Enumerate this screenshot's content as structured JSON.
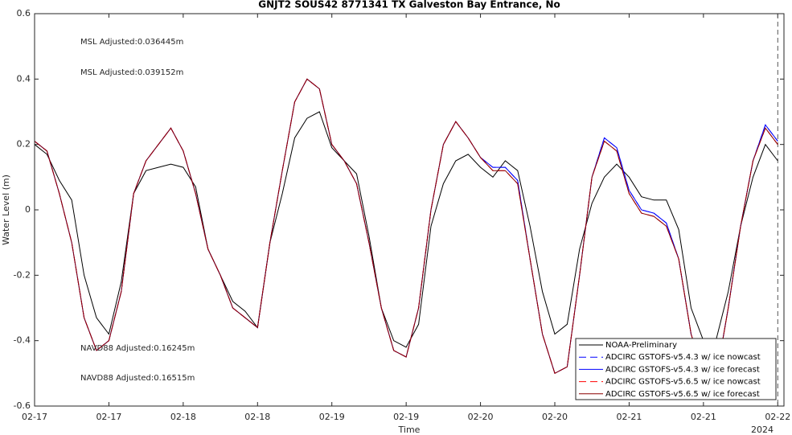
{
  "chart_data": {
    "type": "line",
    "title": "GNJT2 SOUS42 8771341 TX Galveston Bay Entrance, No",
    "xlabel": "Time",
    "ylabel": "Water Level (m)",
    "x_secondary_label": "2024",
    "x": [
      0,
      2,
      4,
      6,
      8,
      10,
      12,
      14,
      16,
      18,
      20,
      22,
      24,
      26,
      28,
      30,
      32,
      34,
      36,
      38,
      40,
      42,
      44,
      46,
      48,
      50,
      52,
      54,
      56,
      58,
      60,
      62,
      64,
      66,
      68,
      70,
      72,
      74,
      76,
      78,
      80,
      82,
      84,
      86,
      88,
      90,
      92,
      94,
      96,
      98,
      100,
      102,
      104,
      106,
      108,
      110,
      112,
      114,
      116,
      118,
      120
    ],
    "xlim": [
      0,
      121
    ],
    "xticks": [
      {
        "value": 0,
        "label": "02-17"
      },
      {
        "value": 12,
        "label": "02-17"
      },
      {
        "value": 24,
        "label": "02-18"
      },
      {
        "value": 36,
        "label": "02-18"
      },
      {
        "value": 48,
        "label": "02-19"
      },
      {
        "value": 60,
        "label": "02-19"
      },
      {
        "value": 72,
        "label": "02-20"
      },
      {
        "value": 84,
        "label": "02-20"
      },
      {
        "value": 96,
        "label": "02-21"
      },
      {
        "value": 108,
        "label": "02-21"
      },
      {
        "value": 120,
        "label": "02-22"
      }
    ],
    "ylim": [
      -0.6,
      0.6
    ],
    "yticks": [
      -0.6,
      -0.4,
      -0.2,
      0,
      0.2,
      0.4,
      0.6
    ],
    "vline_x": 120,
    "legend": "lower right",
    "series": [
      {
        "name": "NOAA-Preliminary",
        "color": "#000000",
        "dash": "solid",
        "values": [
          0.2,
          0.17,
          0.09,
          0.03,
          -0.2,
          -0.33,
          -0.38,
          -0.22,
          0.05,
          0.12,
          0.13,
          0.14,
          0.13,
          0.07,
          -0.12,
          -0.2,
          -0.28,
          -0.31,
          -0.36,
          -0.1,
          0.05,
          0.22,
          0.28,
          0.3,
          0.19,
          0.15,
          0.11,
          -0.08,
          -0.3,
          -0.4,
          -0.42,
          -0.35,
          -0.05,
          0.08,
          0.15,
          0.17,
          0.13,
          0.1,
          0.15,
          0.12,
          -0.05,
          -0.25,
          -0.38,
          -0.35,
          -0.12,
          0.02,
          0.1,
          0.14,
          0.1,
          0.04,
          0.03,
          0.03,
          -0.06,
          -0.3,
          -0.4,
          -0.4,
          -0.25,
          -0.05,
          0.1,
          0.2,
          0.15
        ]
      },
      {
        "name": "ADCIRC GSTOFS-v5.4.3 w/ ice nowcast",
        "color": "#0000ff",
        "dash": "dashed",
        "values": [
          0.21,
          0.18,
          0.05,
          -0.1,
          -0.33,
          -0.43,
          -0.4,
          -0.25,
          0.05,
          0.15,
          0.2,
          0.25,
          0.18,
          0.05,
          -0.12,
          -0.2,
          -0.3,
          -0.33,
          -0.36,
          -0.1,
          0.12,
          0.33,
          0.4,
          0.37,
          0.2,
          0.15,
          0.08,
          -0.1,
          -0.3,
          -0.43,
          -0.45,
          -0.3,
          0.0,
          0.2,
          0.27,
          0.22,
          0.16,
          0.13,
          0.13,
          0.09,
          -0.15,
          -0.38,
          -0.5,
          -0.48,
          -0.2,
          0.1,
          0.22,
          0.19,
          0.06,
          0.0,
          -0.01,
          -0.04,
          -0.15,
          -0.38,
          -0.5,
          -0.52,
          -0.3,
          -0.05,
          0.15,
          0.26,
          0.21
        ]
      },
      {
        "name": "ADCIRC GSTOFS-v5.4.3 w/ ice forecast",
        "color": "#0000ff",
        "dash": "solid",
        "values": [
          0.21,
          0.18,
          0.05,
          -0.1,
          -0.33,
          -0.43,
          -0.4,
          -0.25,
          0.05,
          0.15,
          0.2,
          0.25,
          0.18,
          0.05,
          -0.12,
          -0.2,
          -0.3,
          -0.33,
          -0.36,
          -0.1,
          0.12,
          0.33,
          0.4,
          0.37,
          0.2,
          0.15,
          0.08,
          -0.1,
          -0.3,
          -0.43,
          -0.45,
          -0.3,
          0.0,
          0.2,
          0.27,
          0.22,
          0.16,
          0.13,
          0.13,
          0.09,
          -0.15,
          -0.38,
          -0.5,
          -0.48,
          -0.2,
          0.1,
          0.22,
          0.19,
          0.06,
          0.0,
          -0.01,
          -0.04,
          -0.15,
          -0.38,
          -0.5,
          -0.52,
          -0.3,
          -0.05,
          0.15,
          0.26,
          0.21
        ]
      },
      {
        "name": "ADCIRC GSTOFS-v5.6.5 w/ ice nowcast",
        "color": "#ff0000",
        "dash": "dashed",
        "values": [
          0.21,
          0.18,
          0.05,
          -0.1,
          -0.33,
          -0.43,
          -0.4,
          -0.25,
          0.05,
          0.15,
          0.2,
          0.25,
          0.18,
          0.05,
          -0.12,
          -0.2,
          -0.3,
          -0.33,
          -0.36,
          -0.1,
          0.12,
          0.33,
          0.4,
          0.37,
          0.2,
          0.15,
          0.08,
          -0.1,
          -0.3,
          -0.43,
          -0.45,
          -0.3,
          0.0,
          0.2,
          0.27,
          0.22,
          0.16,
          0.12,
          0.12,
          0.08,
          -0.15,
          -0.38,
          -0.5,
          -0.48,
          -0.2,
          0.1,
          0.21,
          0.18,
          0.05,
          -0.01,
          -0.02,
          -0.05,
          -0.15,
          -0.38,
          -0.5,
          -0.52,
          -0.3,
          -0.05,
          0.15,
          0.25,
          0.2
        ]
      },
      {
        "name": "ADCIRC GSTOFS-v5.6.5 w/ ice forecast",
        "color": "#8b0000",
        "dash": "solid",
        "values": [
          0.21,
          0.18,
          0.05,
          -0.1,
          -0.33,
          -0.43,
          -0.4,
          -0.25,
          0.05,
          0.15,
          0.2,
          0.25,
          0.18,
          0.05,
          -0.12,
          -0.2,
          -0.3,
          -0.33,
          -0.36,
          -0.1,
          0.12,
          0.33,
          0.4,
          0.37,
          0.2,
          0.15,
          0.08,
          -0.1,
          -0.3,
          -0.43,
          -0.45,
          -0.3,
          0.0,
          0.2,
          0.27,
          0.22,
          0.16,
          0.12,
          0.12,
          0.08,
          -0.15,
          -0.38,
          -0.5,
          -0.48,
          -0.2,
          0.1,
          0.21,
          0.18,
          0.05,
          -0.01,
          -0.02,
          -0.05,
          -0.15,
          -0.38,
          -0.5,
          -0.52,
          -0.3,
          -0.05,
          0.15,
          0.25,
          0.2
        ]
      }
    ],
    "annotations": [
      {
        "text": "MSL Adjusted:0.036445m",
        "color": "#0000ff"
      },
      {
        "text": "MSL Adjusted:0.039152m",
        "color": "#ff0000"
      },
      {
        "text": "NAVD88 Adjusted:0.16245m",
        "color": "#0000ff"
      },
      {
        "text": "NAVD88 Adjusted:0.16515m",
        "color": "#ff0000"
      }
    ]
  }
}
